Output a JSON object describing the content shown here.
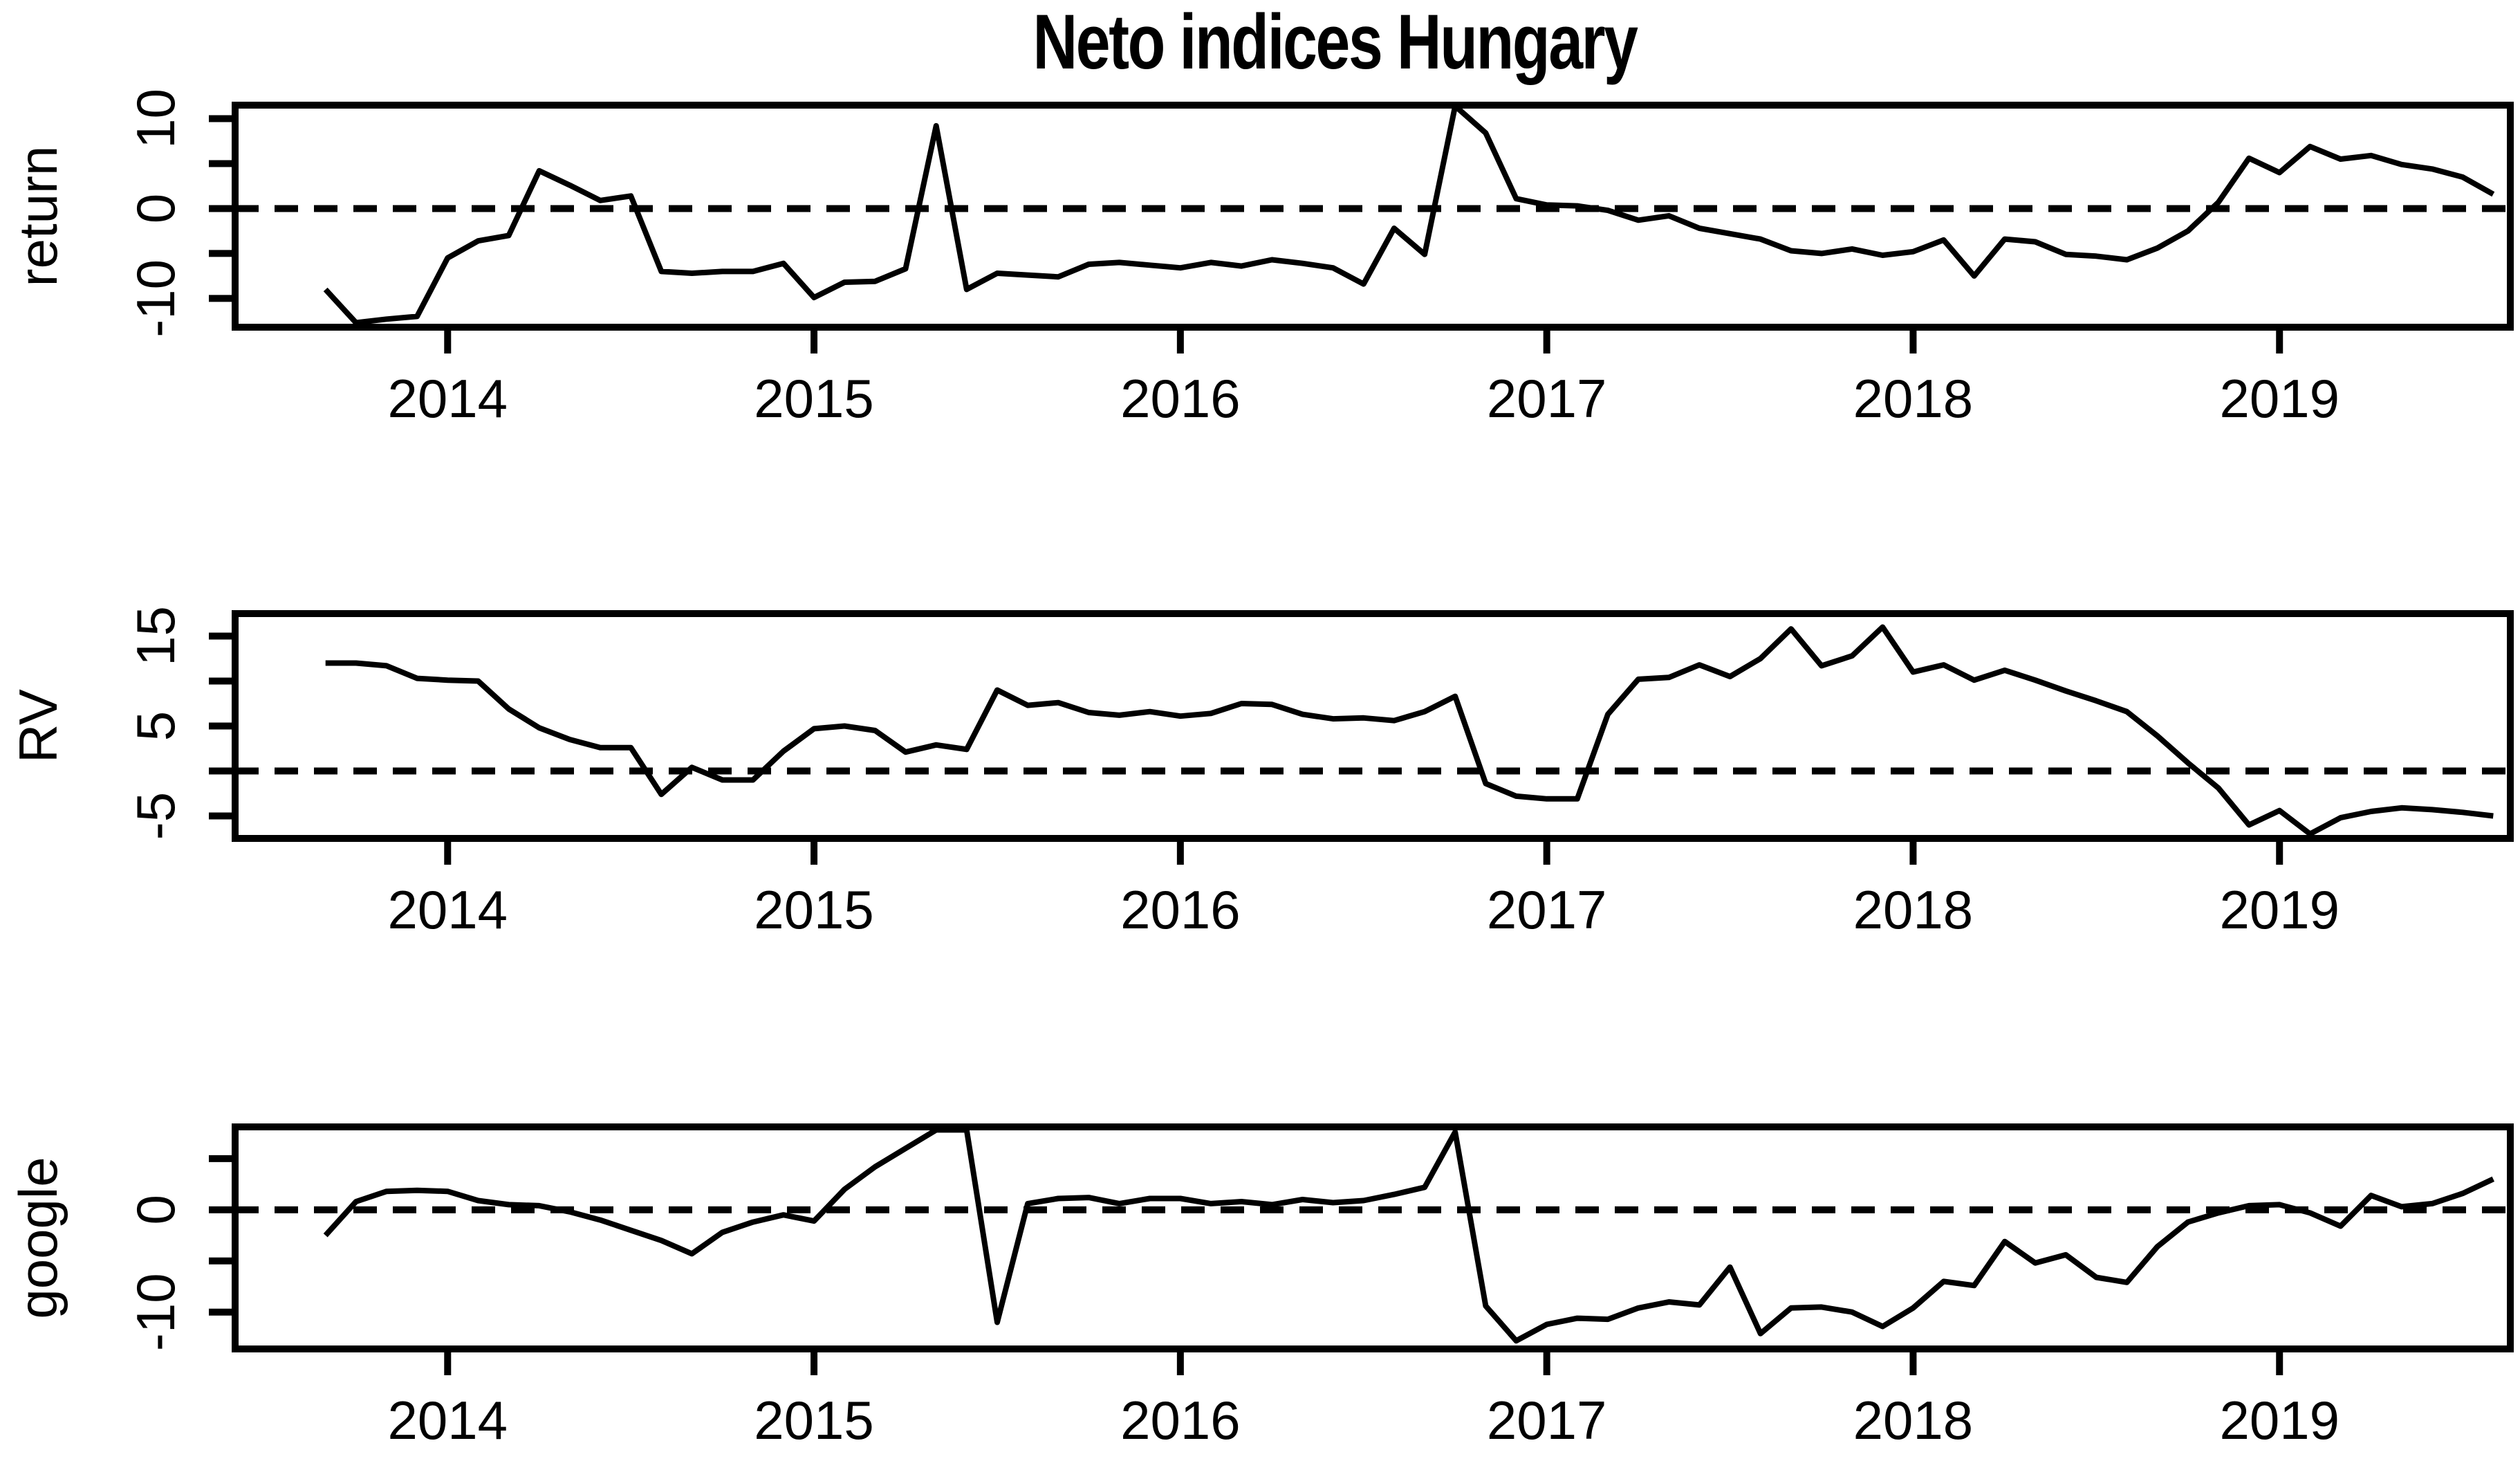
{
  "title": "Neto indices Hungary",
  "chart_data": [
    {
      "type": "line",
      "title": "Neto indices Hungary",
      "ylabel": "return",
      "xlabel": "",
      "legend": null,
      "grid": false,
      "line_color": "#000000",
      "zero_line_style": "dashed",
      "xlim": [
        2013.42,
        2019.63
      ],
      "ylim": [
        -13.2,
        11.5
      ],
      "x_start_year": 2013.6667,
      "x_step_years": 0.083333,
      "x_tick_years": [
        2014,
        2015,
        2016,
        2017,
        2018,
        2019
      ],
      "x_tick_labels": [
        "2014",
        "2015",
        "2016",
        "2017",
        "2018",
        "2019"
      ],
      "y_ticks": [
        {
          "value": -10,
          "label": "-10"
        },
        {
          "value": -5,
          "label": ""
        },
        {
          "value": 0,
          "label": "0"
        },
        {
          "value": 5,
          "label": ""
        },
        {
          "value": 10,
          "label": "10"
        }
      ],
      "values": [
        -9.0,
        -12.7,
        -12.3,
        -12.0,
        -5.5,
        -3.6,
        -3.0,
        4.2,
        2.6,
        0.9,
        1.4,
        -7.0,
        -7.2,
        -7.0,
        -7.0,
        -6.1,
        -9.9,
        -8.2,
        -8.1,
        -6.7,
        9.2,
        -9.0,
        -7.2,
        -7.4,
        -7.6,
        -6.2,
        -6.0,
        -6.3,
        -6.6,
        -6.0,
        -6.4,
        -5.7,
        -6.1,
        -6.6,
        -8.4,
        -2.2,
        -5.1,
        11.4,
        8.4,
        1.1,
        0.4,
        0.3,
        -0.2,
        -1.3,
        -0.8,
        -2.2,
        -2.8,
        -3.4,
        -4.7,
        -5.0,
        -4.5,
        -5.2,
        -4.8,
        -3.5,
        -7.5,
        -3.4,
        -3.7,
        -5.1,
        -5.3,
        -5.7,
        -4.4,
        -2.5,
        0.7,
        5.6,
        4.0,
        6.9,
        5.5,
        5.9,
        4.9,
        4.4,
        3.5,
        1.6
      ]
    },
    {
      "type": "line",
      "title": "",
      "ylabel": "RV",
      "xlabel": "",
      "legend": null,
      "grid": false,
      "line_color": "#000000",
      "zero_line_style": "dashed",
      "xlim": [
        2013.42,
        2019.63
      ],
      "ylim": [
        -7.5,
        17.5
      ],
      "x_start_year": 2013.6667,
      "x_step_years": 0.083333,
      "x_tick_years": [
        2014,
        2015,
        2016,
        2017,
        2018,
        2019
      ],
      "x_tick_labels": [
        "2014",
        "2015",
        "2016",
        "2017",
        "2018",
        "2019"
      ],
      "y_ticks": [
        {
          "value": -5,
          "label": "-5"
        },
        {
          "value": 0,
          "label": ""
        },
        {
          "value": 5,
          "label": "5"
        },
        {
          "value": 10,
          "label": ""
        },
        {
          "value": 15,
          "label": "15"
        }
      ],
      "values": [
        12.0,
        12.0,
        11.7,
        10.3,
        10.1,
        10.0,
        6.9,
        4.8,
        3.5,
        2.6,
        2.6,
        -2.6,
        0.4,
        -1.0,
        -1.0,
        2.2,
        4.7,
        5.0,
        4.5,
        2.1,
        2.9,
        2.4,
        9.0,
        7.3,
        7.6,
        6.5,
        6.2,
        6.6,
        6.1,
        6.4,
        7.5,
        7.4,
        6.3,
        5.8,
        5.9,
        5.6,
        6.6,
        8.3,
        -1.4,
        -2.8,
        -3.1,
        -3.1,
        6.3,
        10.2,
        10.4,
        11.8,
        10.5,
        12.5,
        15.8,
        11.7,
        12.8,
        16.0,
        11.0,
        11.8,
        10.1,
        11.2,
        10.1,
        8.9,
        7.8,
        6.6,
        3.9,
        0.9,
        -1.9,
        -6.0,
        -4.4,
        -7.0,
        -5.2,
        -4.5,
        -4.1,
        -4.3,
        -4.6,
        -5.0
      ]
    },
    {
      "type": "line",
      "title": "",
      "ylabel": "google",
      "xlabel": "",
      "legend": null,
      "grid": false,
      "line_color": "#000000",
      "zero_line_style": "dashed",
      "xlim": [
        2013.42,
        2019.63
      ],
      "ylim": [
        -13.6,
        8.1
      ],
      "x_start_year": 2013.6667,
      "x_step_years": 0.083333,
      "x_tick_years": [
        2014,
        2015,
        2016,
        2017,
        2018,
        2019
      ],
      "x_tick_labels": [
        "2014",
        "2015",
        "2016",
        "2017",
        "2018",
        "2019"
      ],
      "y_ticks": [
        {
          "value": -10,
          "label": "-10"
        },
        {
          "value": -5,
          "label": ""
        },
        {
          "value": 0,
          "label": "0"
        },
        {
          "value": 5,
          "label": ""
        }
      ],
      "values": [
        -2.5,
        0.8,
        1.8,
        1.9,
        1.8,
        0.9,
        0.5,
        0.4,
        -0.2,
        -1.0,
        -2.0,
        -3.0,
        -4.3,
        -2.2,
        -1.2,
        -0.5,
        -1.1,
        2.0,
        4.2,
        6.0,
        7.8,
        7.8,
        -11.0,
        0.6,
        1.1,
        1.2,
        0.6,
        1.1,
        1.1,
        0.6,
        0.8,
        0.5,
        1.0,
        0.7,
        0.9,
        1.5,
        2.2,
        7.6,
        -9.4,
        -12.8,
        -11.2,
        -10.6,
        -10.7,
        -9.6,
        -9.0,
        -9.3,
        -5.6,
        -12.1,
        -9.6,
        -9.5,
        -10.0,
        -11.4,
        -9.6,
        -7.0,
        -7.4,
        -3.1,
        -5.2,
        -4.4,
        -6.6,
        -7.1,
        -3.6,
        -1.2,
        -0.3,
        0.4,
        0.5,
        -0.3,
        -1.6,
        1.4,
        0.3,
        0.6,
        1.6,
        3.0
      ]
    }
  ]
}
